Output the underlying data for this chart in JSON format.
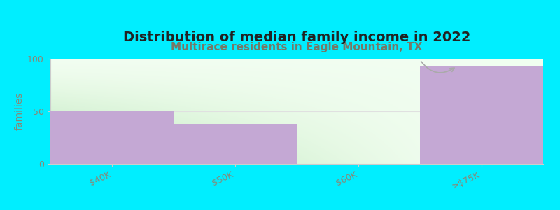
{
  "title": "Distribution of median family income in 2022",
  "subtitle": "Multirace residents in Eagle Mountain, TX",
  "categories": [
    "$40K",
    "$50K",
    "$60K",
    ">$75K"
  ],
  "values": [
    51,
    38,
    0,
    93
  ],
  "bar_color": "#c4a8d4",
  "background_color": "#00eeff",
  "ylabel": "families",
  "ylim": [
    0,
    100
  ],
  "yticks": [
    0,
    50,
    100
  ],
  "title_fontsize": 14,
  "subtitle_fontsize": 11,
  "subtitle_color": "#777766",
  "tick_label_color": "#888877",
  "title_color": "#222222"
}
